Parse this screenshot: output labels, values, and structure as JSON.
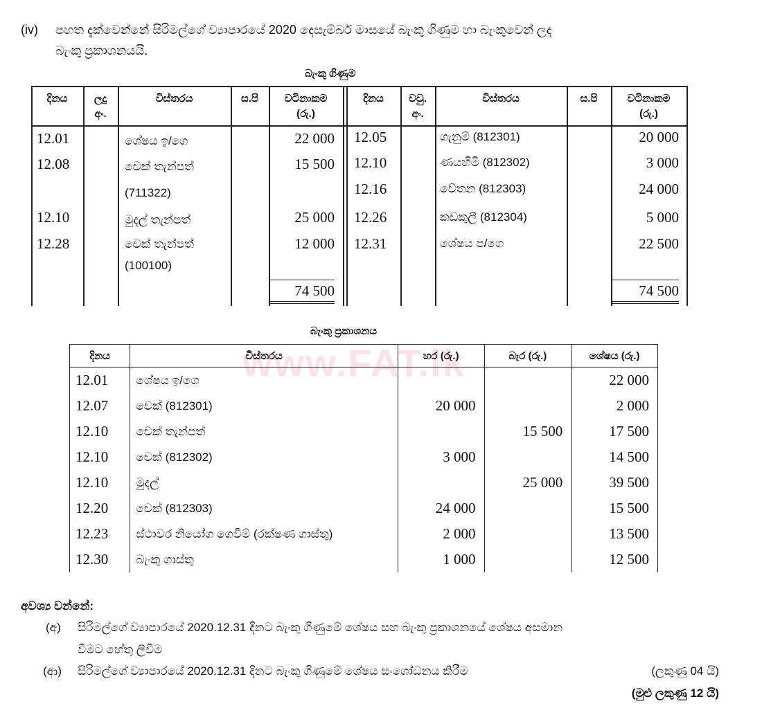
{
  "intro": {
    "label": "(iv)",
    "line1": "පහත දැක්වෙන්නේ සිරිමල්ගේ ව්‍යාපාරයේ 2020 දෙසැම්බර් මාසයේ බැංකු ගිණුම හා බැංකුවෙන් ලද",
    "line2": "බැංකු ප්‍රකාශනයයි."
  },
  "cash_book": {
    "title": "බැංකු ගිණුම",
    "left_headers": [
      "දිනය",
      "ලදු\nඅං.",
      "විස්තරය",
      "ස.පි",
      "වටිනාකම\n(රු.)"
    ],
    "right_headers": [
      "දිනය",
      "වවු.\nඅං.",
      "විස්තරය",
      "ස.පි",
      "වටිනාකම\n(රු.)"
    ],
    "left_rows": [
      {
        "date": "12.01",
        "desc": "ශේෂය ඉ/ගෙ",
        "amount": "22 000"
      },
      {
        "date": "12.08",
        "desc": "චෙක් තැන්පත්\n(711322)",
        "amount": "15 500"
      },
      {
        "date": "12.10",
        "desc": "මුදල් තැන්පත්",
        "amount": "25 000"
      },
      {
        "date": "12.28",
        "desc": "චෙක් තැන්පත්\n(100100)",
        "amount": "12 000"
      }
    ],
    "right_rows": [
      {
        "date": "12.05",
        "desc": "ගැනුම් (812301)",
        "amount": "20 000"
      },
      {
        "date": "12.10",
        "desc": "ණයහිමි (812302)",
        "amount": "3 000"
      },
      {
        "date": "12.16",
        "desc": "වේතන (812303)",
        "amount": "24 000"
      },
      {
        "date": "12.26",
        "desc": "කඩකුලී (812304)",
        "amount": "5 000"
      },
      {
        "date": "12.31",
        "desc": "ශේෂය ප/ගෙ",
        "amount": "22 500"
      }
    ],
    "left_total": "74 500",
    "right_total": "74 500"
  },
  "bank_statement": {
    "title": "බැංකු ප්‍රකාශනය",
    "headers": [
      "දිනය",
      "විස්තරය",
      "හර (රු.)",
      "බැර (රු.)",
      "ශේෂය (රු.)"
    ],
    "rows": [
      {
        "date": "12.01",
        "desc": "ශේෂය ඉ/ගෙ",
        "debit": "",
        "credit": "",
        "balance": "22 000"
      },
      {
        "date": "12.07",
        "desc": "චෙක් (812301)",
        "debit": "20 000",
        "credit": "",
        "balance": "2 000"
      },
      {
        "date": "12.10",
        "desc": "චෙක් තැන්පත්",
        "debit": "",
        "credit": "15 500",
        "balance": "17 500"
      },
      {
        "date": "12.10",
        "desc": "චෙක් (812302)",
        "debit": "3 000",
        "credit": "",
        "balance": "14 500"
      },
      {
        "date": "12.10",
        "desc": "මුදල්",
        "debit": "",
        "credit": "25 000",
        "balance": "39 500"
      },
      {
        "date": "12.20",
        "desc": "චෙක් (812303)",
        "debit": "24 000",
        "credit": "",
        "balance": "15 500"
      },
      {
        "date": "12.23",
        "desc": "ස්ථාවර නියෝග ගෙවීම් (රක්ෂණ ගාස්තු)",
        "debit": "2 000",
        "credit": "",
        "balance": "13 500"
      },
      {
        "date": "12.30",
        "desc": "බැංකු ගාස්තු",
        "debit": "1 000",
        "credit": "",
        "balance": "12 500"
      }
    ]
  },
  "watermark": "www.FAT.lk",
  "required": {
    "heading": "අවශ්‍ය වන්නේ:",
    "items": [
      {
        "label": "(අ)",
        "line1": "සිරිමල්ගේ ව්‍යාපාරයේ 2020.12.31 දිනට බැංකු ගිණුමේ ශේෂය සහ බැංකු ප්‍රකාශනයේ ශේෂය අසමාන",
        "line2": "වීමට හේතු ලිවීම"
      },
      {
        "label": "(ආ)",
        "line1": "සිරිමල්ගේ ව්‍යාපාරයේ 2020.12.31 දිනට බැංකු ගිණුමේ ශේෂය සංශෝධනය කිරීම",
        "marks": "(ලකුණු 04 යි)"
      }
    ],
    "total_marks": "(මුළු ලකුණු 12 යි)"
  }
}
